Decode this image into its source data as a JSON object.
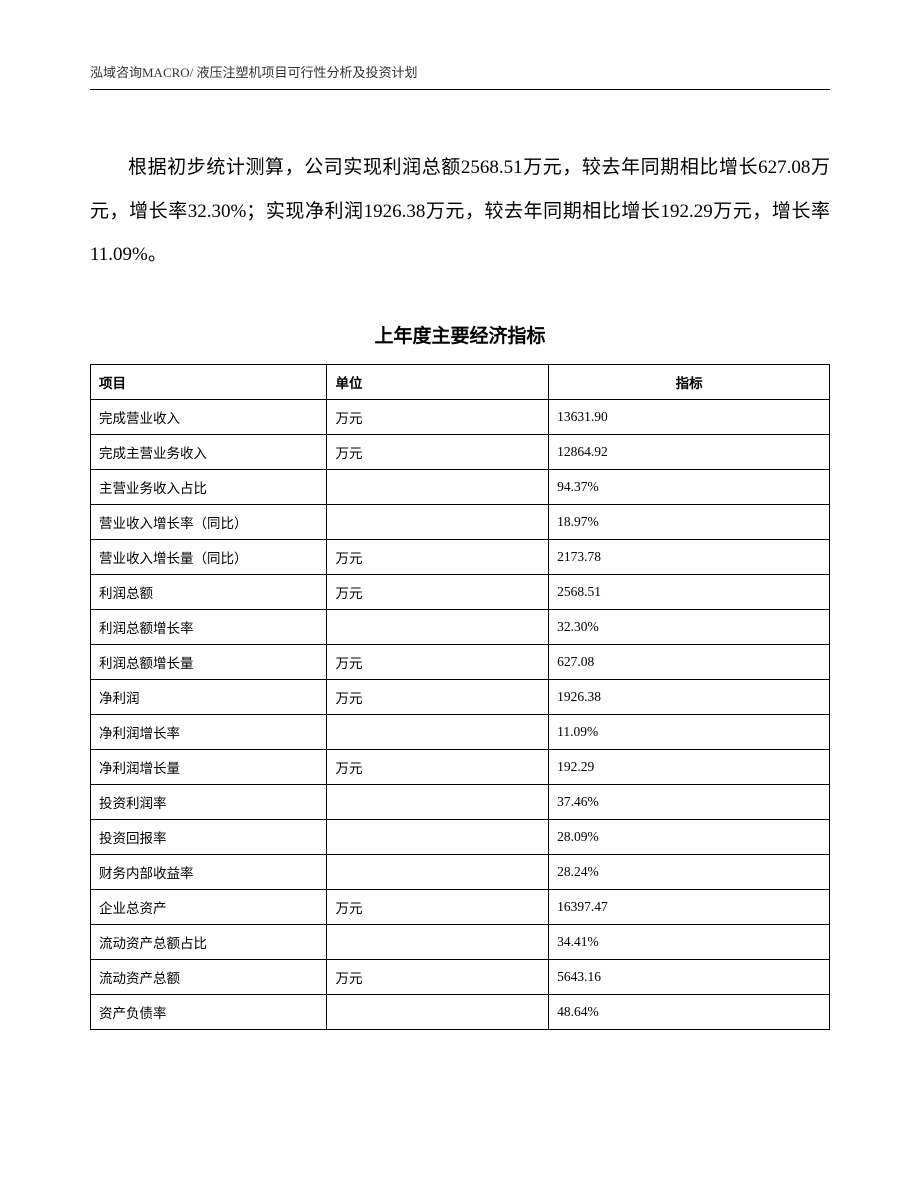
{
  "header": "泓域咨询MACRO/ 液压注塑机项目可行性分析及投资计划",
  "paragraph": "根据初步统计测算，公司实现利润总额2568.51万元，较去年同期相比增长627.08万元，增长率32.30%；实现净利润1926.38万元，较去年同期相比增长192.29万元，增长率11.09%。",
  "table": {
    "title": "上年度主要经济指标",
    "columns": [
      "项目",
      "单位",
      "指标"
    ],
    "rows": [
      [
        "完成营业收入",
        "万元",
        "13631.90"
      ],
      [
        "完成主营业务收入",
        "万元",
        "12864.92"
      ],
      [
        "主营业务收入占比",
        "",
        "94.37%"
      ],
      [
        "营业收入增长率（同比）",
        "",
        "18.97%"
      ],
      [
        "营业收入增长量（同比）",
        "万元",
        "2173.78"
      ],
      [
        "利润总额",
        "万元",
        "2568.51"
      ],
      [
        "利润总额增长率",
        "",
        "32.30%"
      ],
      [
        "利润总额增长量",
        "万元",
        "627.08"
      ],
      [
        "净利润",
        "万元",
        "1926.38"
      ],
      [
        "净利润增长率",
        "",
        "11.09%"
      ],
      [
        "净利润增长量",
        "万元",
        "192.29"
      ],
      [
        "投资利润率",
        "",
        "37.46%"
      ],
      [
        "投资回报率",
        "",
        "28.09%"
      ],
      [
        "财务内部收益率",
        "",
        "28.24%"
      ],
      [
        "企业总资产",
        "万元",
        "16397.47"
      ],
      [
        "流动资产总额占比",
        "",
        "34.41%"
      ],
      [
        "流动资产总额",
        "万元",
        "5643.16"
      ],
      [
        "资产负债率",
        "",
        "48.64%"
      ]
    ]
  }
}
